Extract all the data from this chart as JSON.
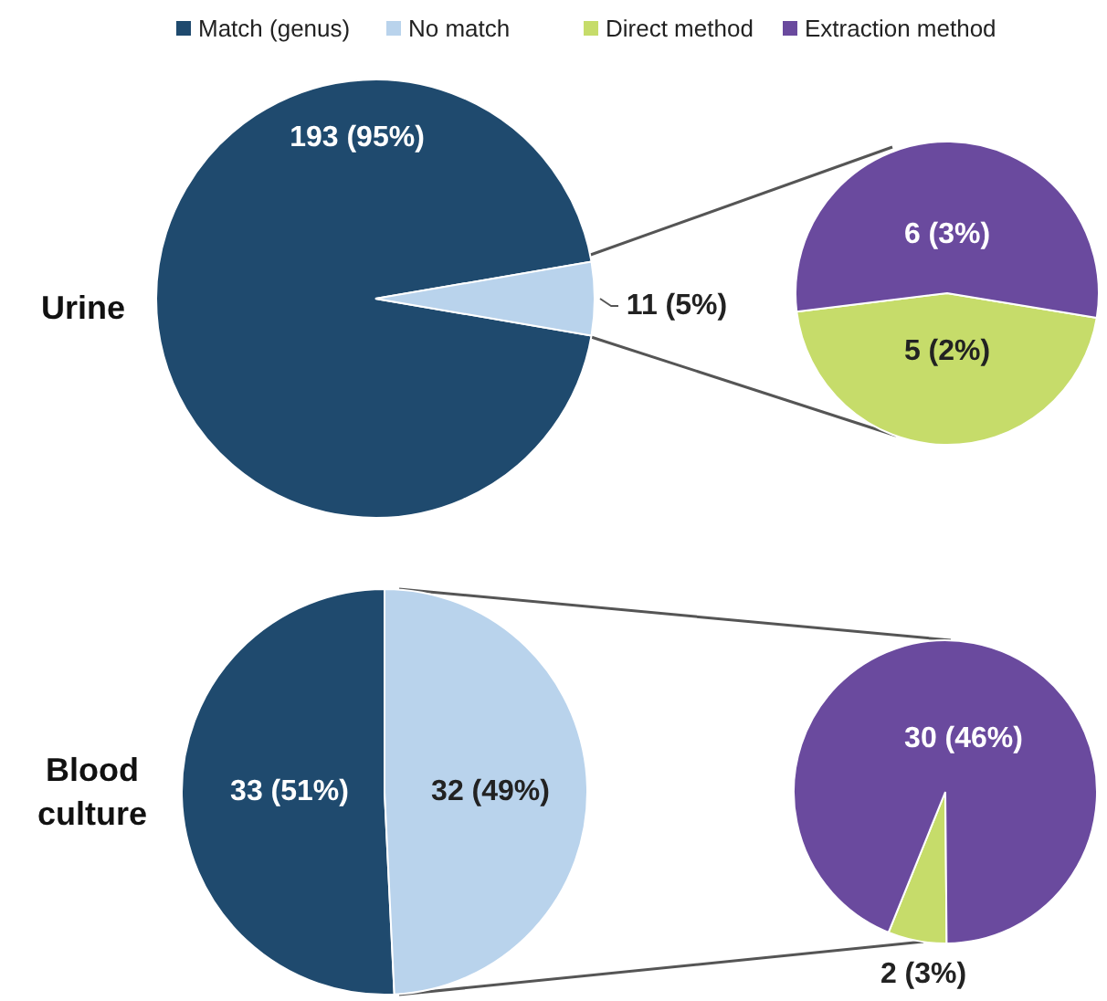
{
  "chart_data": [
    {
      "type": "pie",
      "title": "Urine",
      "legend": "top",
      "categories": [
        "Match (genus)",
        "No match"
      ],
      "values": [
        193,
        11
      ],
      "colors": [
        "#1f4a6e",
        "#b9d3ec"
      ],
      "value_labels": [
        "193 (95%)",
        "11 (5%)"
      ]
    },
    {
      "type": "pie",
      "legend": "top",
      "categories": [
        "Direct method",
        "Extraction method"
      ],
      "values": [
        5,
        6
      ],
      "colors": [
        "#c6dc6a",
        "#6a4a9e"
      ],
      "value_labels": [
        "5 (2%)",
        "6 (3%)"
      ]
    },
    {
      "type": "pie",
      "title": "Blood culture",
      "categories": [
        null,
        null
      ],
      "values": [
        33,
        32
      ],
      "colors": [
        "#1f4a6e",
        "#b9d3ec"
      ],
      "value_labels": [
        "33 (51%)",
        "32 (49%)"
      ]
    },
    {
      "type": "pie",
      "categories": [
        null,
        null
      ],
      "values": [
        2,
        30
      ],
      "colors": [
        "#c6dc6a",
        "#6a4a9e"
      ],
      "value_labels": [
        "2 (3%)",
        "30 (46%)"
      ]
    }
  ]
}
